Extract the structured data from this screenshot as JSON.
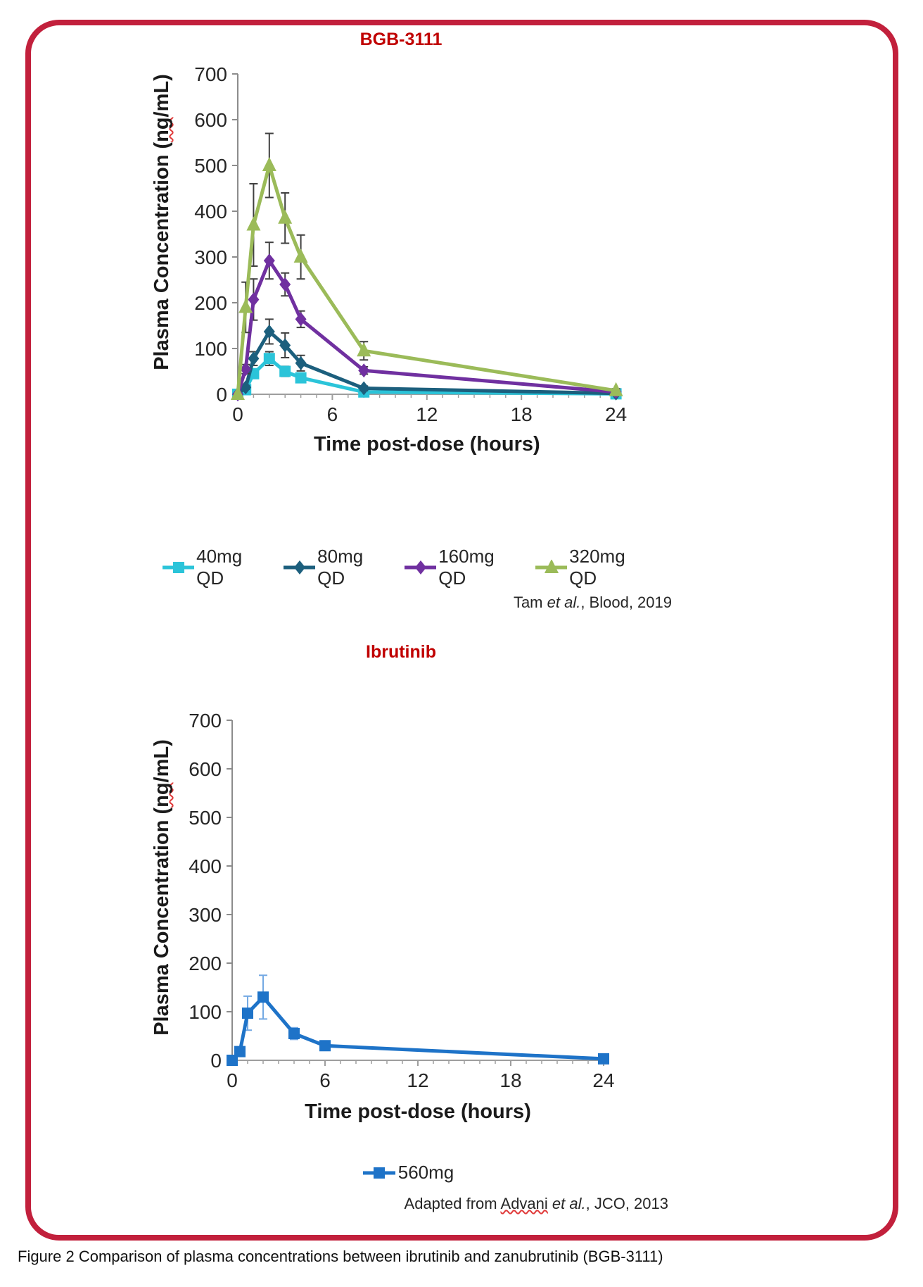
{
  "page": {
    "caption": "Figure 2 Comparison of plasma concentrations between ibrutinib and zanubrutinib (BGB-3111)"
  },
  "colors": {
    "border": "#C2203C",
    "chart_title": "#C00000",
    "axis": "#9E9E9E",
    "tick_text": "#262626",
    "error_bar_dark": "#404040",
    "error_bar_light": "#74A9E3",
    "series_40mg": "#2BC4D9",
    "series_80mg": "#1C5F7D",
    "series_160mg": "#7030A0",
    "series_320mg": "#9BBB59",
    "series_560mg": "#1E73C8"
  },
  "chart_data": [
    {
      "type": "line",
      "title": "BGB-3111",
      "xlabel": "Time post-dose (hours)",
      "ylabel": "Plasma Concentration (ng/mL)",
      "ylabel_parts": {
        "pre": "Plasma Concentration (",
        "squiggle": "ng",
        "post": "/mL)"
      },
      "xlim": [
        0,
        24
      ],
      "ylim": [
        0,
        700
      ],
      "yticks": [
        0,
        100,
        200,
        300,
        400,
        500,
        600,
        700
      ],
      "xticks_major": [
        0,
        6,
        12,
        18,
        24
      ],
      "xticks_minor_step": 1,
      "grid": false,
      "legend_position": "bottom",
      "x": [
        0,
        0.5,
        1,
        2,
        3,
        4,
        8,
        24
      ],
      "series": [
        {
          "name": "40mg QD",
          "color": "#2BC4D9",
          "marker": "square",
          "values": [
            0,
            10,
            45,
            78,
            50,
            36,
            5,
            1
          ],
          "errors": [
            0,
            3,
            10,
            15,
            11,
            10,
            3,
            0
          ],
          "error_color": "#404040"
        },
        {
          "name": "80mg QD",
          "color": "#1C5F7D",
          "marker": "diamond",
          "values": [
            0,
            15,
            78,
            137,
            107,
            68,
            13,
            2
          ],
          "errors": [
            0,
            4,
            15,
            27,
            27,
            17,
            5,
            0
          ],
          "error_color": "#404040"
        },
        {
          "name": "160mg QD",
          "color": "#7030A0",
          "marker": "diamond",
          "values": [
            0,
            55,
            207,
            292,
            240,
            164,
            52,
            5
          ],
          "errors": [
            0,
            10,
            45,
            40,
            25,
            18,
            8,
            2
          ],
          "error_color": "#404040"
        },
        {
          "name": "320mg QD",
          "color": "#9BBB59",
          "marker": "triangle",
          "values": [
            0,
            190,
            370,
            500,
            385,
            300,
            95,
            8
          ],
          "errors": [
            0,
            55,
            90,
            70,
            55,
            48,
            20,
            4
          ],
          "error_color": "#404040"
        }
      ],
      "attribution": {
        "pre": "Tam ",
        "misspelled": "",
        "italic": "et al.",
        "post": ", Blood, 2019"
      }
    },
    {
      "type": "line",
      "title": "Ibrutinib",
      "xlabel": "Time post-dose (hours)",
      "ylabel": "Plasma Concentration (ng/mL)",
      "ylabel_parts": {
        "pre": "Plasma Concentration (",
        "squiggle": "ng",
        "post": "/mL)"
      },
      "xlim": [
        0,
        24
      ],
      "ylim": [
        0,
        700
      ],
      "yticks": [
        0,
        100,
        200,
        300,
        400,
        500,
        600,
        700
      ],
      "xticks_major": [
        0,
        6,
        12,
        18,
        24
      ],
      "xticks_minor_step": 1,
      "grid": false,
      "legend_position": "bottom",
      "x": [
        0,
        0.5,
        1,
        2,
        4,
        6,
        24
      ],
      "series": [
        {
          "name": "560mg",
          "color": "#1E73C8",
          "marker": "square",
          "values": [
            0,
            18,
            97,
            130,
            55,
            30,
            3
          ],
          "errors": [
            0,
            6,
            35,
            45,
            12,
            6,
            0
          ],
          "error_color": "#74A9E3"
        }
      ],
      "attribution": {
        "pre": "Adapted from ",
        "misspelled": "Advani",
        "italic": " et al.",
        "post": ", JCO, 2013"
      }
    }
  ]
}
